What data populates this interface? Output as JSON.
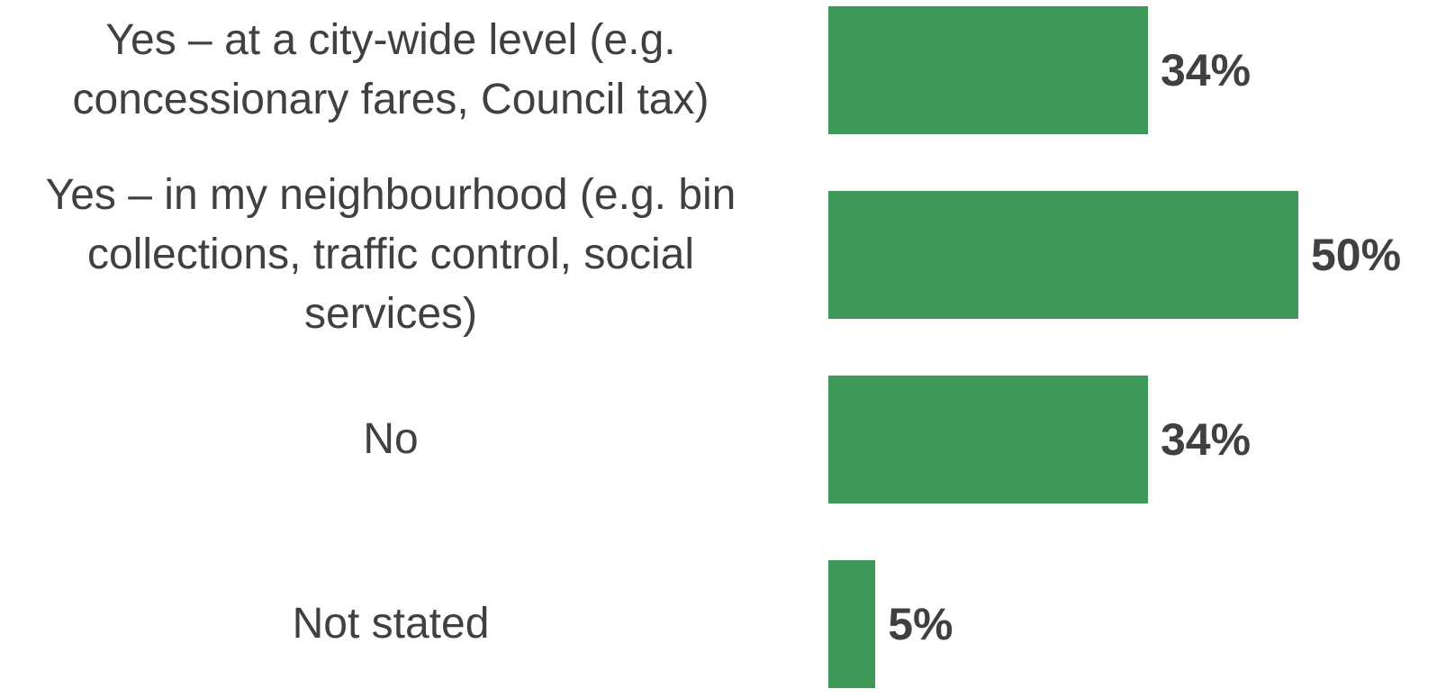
{
  "chart_data": {
    "type": "bar",
    "orientation": "horizontal",
    "categories": [
      "Yes – at a city-wide level (e.g.\nconcessionary fares, Council tax)",
      "Yes – in my neighbourhood (e.g. bin\ncollections, traffic control, social\nservices)",
      "No",
      "Not stated"
    ],
    "values": [
      34,
      50,
      34,
      5
    ],
    "value_labels": [
      "34%",
      "50%",
      "34%",
      "5%"
    ],
    "unit": "%",
    "bar_color": "#3D9957",
    "label_color": "#404040",
    "grid": false,
    "legend": "none"
  }
}
